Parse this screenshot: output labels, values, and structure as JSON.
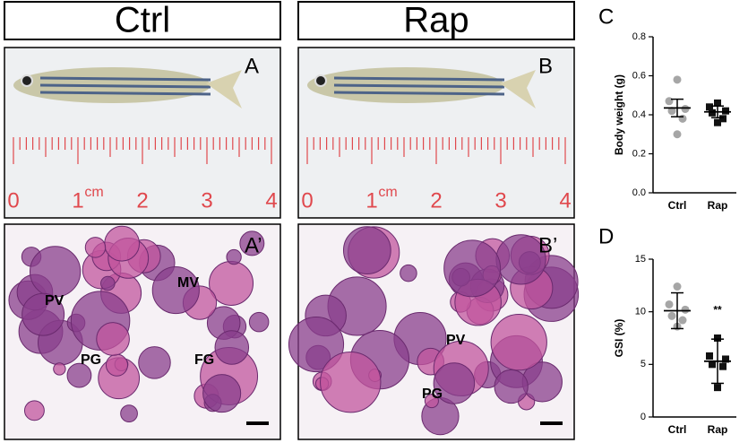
{
  "headers": {
    "ctrl": "Ctrl",
    "rap": "Rap"
  },
  "panel_letters": {
    "A": "A",
    "B": "B",
    "A2": "A’",
    "B2": "B’"
  },
  "ruler": {
    "labels": [
      "0",
      "1",
      "2",
      "3",
      "4"
    ],
    "unit": "cm"
  },
  "histology_A": [
    "PV",
    "MV",
    "PG",
    "FG"
  ],
  "histology_B": [
    "PV",
    "PG"
  ],
  "chart_data": [
    {
      "type": "scatter",
      "panel": "C",
      "ylabel": "Body weight (g)",
      "categories": [
        "Ctrl",
        "Rap"
      ],
      "groups": [
        {
          "color": "#a6a6a6",
          "marker": "circle",
          "values": [
            0.58,
            0.47,
            0.43,
            0.42,
            0.38,
            0.3
          ]
        },
        {
          "color": "#111111",
          "marker": "square",
          "values": [
            0.46,
            0.44,
            0.42,
            0.41,
            0.38,
            0.36
          ]
        }
      ],
      "means": [
        0.435,
        0.415
      ],
      "errors": [
        0.045,
        0.03
      ],
      "ylim": [
        0,
        0.8
      ],
      "yticks": [
        {
          "value": 0,
          "label": "0.0"
        },
        0.2,
        0.4,
        0.6,
        0.8
      ]
    },
    {
      "type": "scatter",
      "panel": "D",
      "ylabel": "GSI (%)",
      "categories": [
        "Ctrl",
        "Rap"
      ],
      "groups": [
        {
          "color": "#a6a6a6",
          "marker": "circle",
          "values": [
            12.4,
            10.7,
            10.2,
            9.6,
            9.2,
            8.6
          ]
        },
        {
          "color": "#111111",
          "marker": "square",
          "values": [
            7.5,
            5.8,
            5.5,
            5.0,
            4.8,
            2.8
          ]
        }
      ],
      "means": [
        10.1,
        5.3
      ],
      "errors": [
        1.7,
        2.1
      ],
      "annotation": "**",
      "ylim": [
        0,
        15
      ],
      "yticks": [
        0,
        5,
        10,
        15
      ]
    }
  ]
}
